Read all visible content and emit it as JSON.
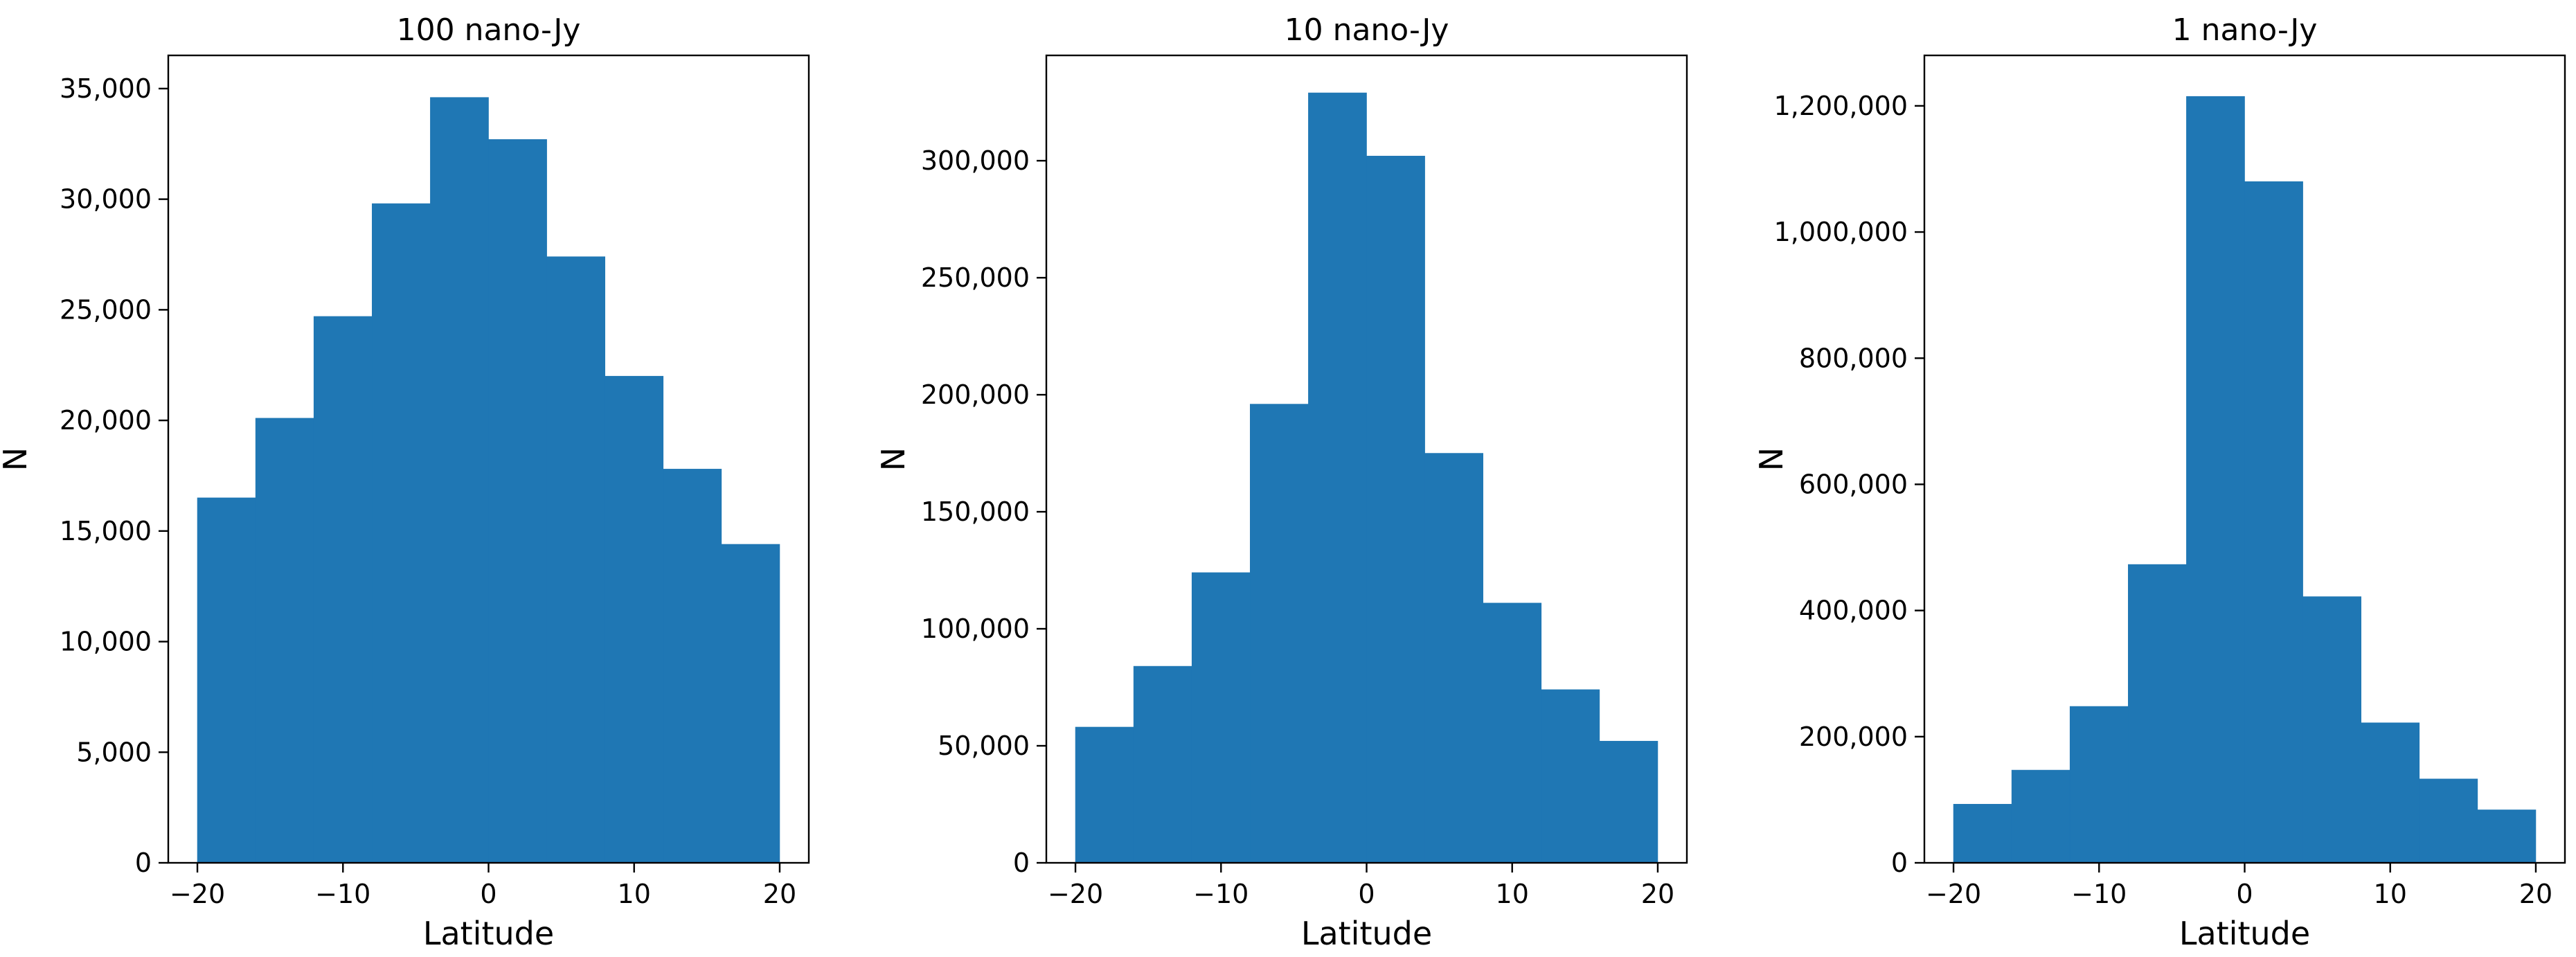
{
  "figure": {
    "background": "#ffffff",
    "bar_color": "#1f77b4"
  },
  "chart_data": [
    {
      "type": "bar",
      "title": "100 nano-Jy",
      "xlabel": "Latitude",
      "ylabel": "N",
      "bin_edges": [
        -20,
        -16,
        -12,
        -8,
        -4,
        0,
        4,
        8,
        12,
        16,
        20
      ],
      "values": [
        16500,
        20100,
        24700,
        29800,
        34600,
        32700,
        27400,
        22000,
        17800,
        14400
      ],
      "xlim": [
        -22,
        22
      ],
      "ylim": [
        0,
        36500
      ],
      "xticks": [
        -20,
        -10,
        0,
        10,
        20
      ],
      "xtick_labels": [
        "−20",
        "−10",
        "0",
        "10",
        "20"
      ],
      "yticks": [
        0,
        5000,
        10000,
        15000,
        20000,
        25000,
        30000,
        35000
      ],
      "ytick_labels": [
        "0",
        "5,000",
        "10,000",
        "15,000",
        "20,000",
        "25,000",
        "30,000",
        "35,000"
      ],
      "grid": false,
      "legend": "none"
    },
    {
      "type": "bar",
      "title": "10 nano-Jy",
      "xlabel": "Latitude",
      "ylabel": "N",
      "bin_edges": [
        -20,
        -16,
        -12,
        -8,
        -4,
        0,
        4,
        8,
        12,
        16,
        20
      ],
      "values": [
        58000,
        84000,
        124000,
        196000,
        329000,
        302000,
        175000,
        111000,
        74000,
        52000
      ],
      "xlim": [
        -22,
        22
      ],
      "ylim": [
        0,
        345000
      ],
      "xticks": [
        -20,
        -10,
        0,
        10,
        20
      ],
      "xtick_labels": [
        "−20",
        "−10",
        "0",
        "10",
        "20"
      ],
      "yticks": [
        0,
        50000,
        100000,
        150000,
        200000,
        250000,
        300000
      ],
      "ytick_labels": [
        "0",
        "50,000",
        "100,000",
        "150,000",
        "200,000",
        "250,000",
        "300,000"
      ],
      "grid": false,
      "legend": "none"
    },
    {
      "type": "bar",
      "title": "1 nano-Jy",
      "xlabel": "Latitude",
      "ylabel": "N",
      "bin_edges": [
        -20,
        -16,
        -12,
        -8,
        -4,
        0,
        4,
        8,
        12,
        16,
        20
      ],
      "values": [
        93000,
        147000,
        248000,
        473000,
        1215000,
        1080000,
        422000,
        222000,
        133000,
        84000
      ],
      "xlim": [
        -22,
        22
      ],
      "ylim": [
        0,
        1280000
      ],
      "xticks": [
        -20,
        -10,
        0,
        10,
        20
      ],
      "xtick_labels": [
        "−20",
        "−10",
        "0",
        "10",
        "20"
      ],
      "yticks": [
        0,
        200000,
        400000,
        600000,
        800000,
        1000000,
        1200000
      ],
      "ytick_labels": [
        "0",
        "200,000",
        "400,000",
        "600,000",
        "800,000",
        "1,000,000",
        "1,200,000"
      ],
      "grid": false,
      "legend": "none"
    }
  ]
}
